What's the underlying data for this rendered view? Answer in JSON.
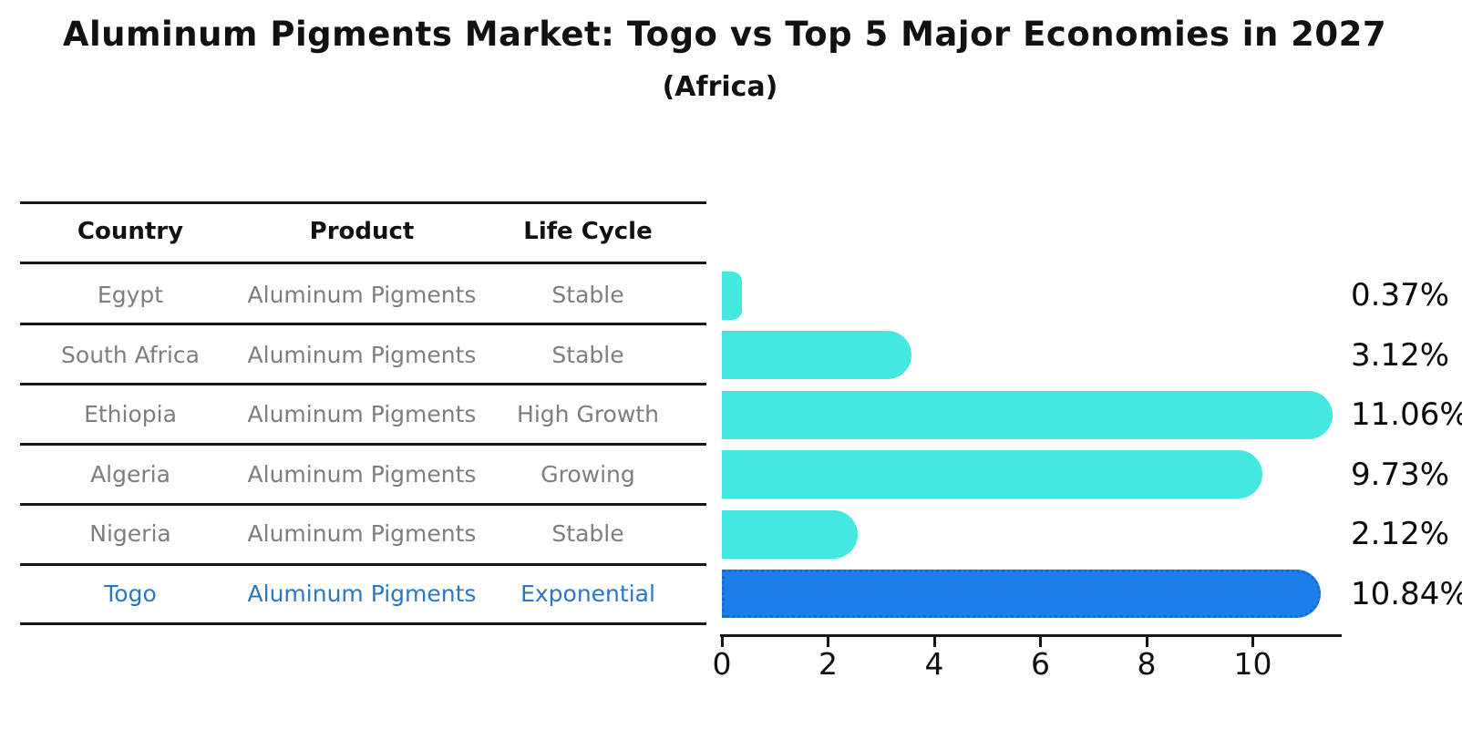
{
  "title": "Aluminum Pigments Market: Togo vs Top 5 Major Economies in 2027",
  "subtitle": "(Africa)",
  "table": {
    "headers": [
      "Country",
      "Product",
      "Life Cycle"
    ],
    "rows": [
      {
        "country": "Egypt",
        "product": "Aluminum Pigments",
        "life_cycle": "Stable",
        "highlight": false
      },
      {
        "country": "South Africa",
        "product": "Aluminum Pigments",
        "life_cycle": "Stable",
        "highlight": false
      },
      {
        "country": "Ethiopia",
        "product": "Aluminum Pigments",
        "life_cycle": "High Growth",
        "highlight": false
      },
      {
        "country": "Algeria",
        "product": "Aluminum Pigments",
        "life_cycle": "Growing",
        "highlight": false
      },
      {
        "country": "Nigeria",
        "product": "Aluminum Pigments",
        "life_cycle": "Stable",
        "highlight": false
      },
      {
        "country": "Togo",
        "product": "Aluminum Pigments",
        "life_cycle": "Exponential",
        "highlight": true
      }
    ]
  },
  "chart_data": {
    "type": "bar",
    "orientation": "horizontal",
    "title": "Aluminum Pigments Market: Togo vs Top 5 Major Economies in 2027 (Africa)",
    "categories": [
      "Egypt",
      "South Africa",
      "Ethiopia",
      "Algeria",
      "Nigeria",
      "Togo"
    ],
    "values": [
      0.37,
      3.12,
      11.06,
      9.73,
      2.12,
      10.84
    ],
    "value_labels": [
      "0.37%",
      "3.12%",
      "11.06%",
      "9.73%",
      "2.12%",
      "10.84%"
    ],
    "x_ticks": [
      0,
      2,
      4,
      6,
      8,
      10
    ],
    "xlim": [
      0,
      11.65
    ],
    "grid": false,
    "legend": false,
    "bar_color": "#45e8e0",
    "highlight_color": "#1e7eea",
    "highlight_index": 5
  },
  "colors": {
    "bar_cyan": "#45e8e0",
    "bar_blue": "#1e7eea",
    "highlight_text_blue": "#2878c9",
    "row_text_gray": "#7e7e7e",
    "axis_black": "#151515"
  }
}
